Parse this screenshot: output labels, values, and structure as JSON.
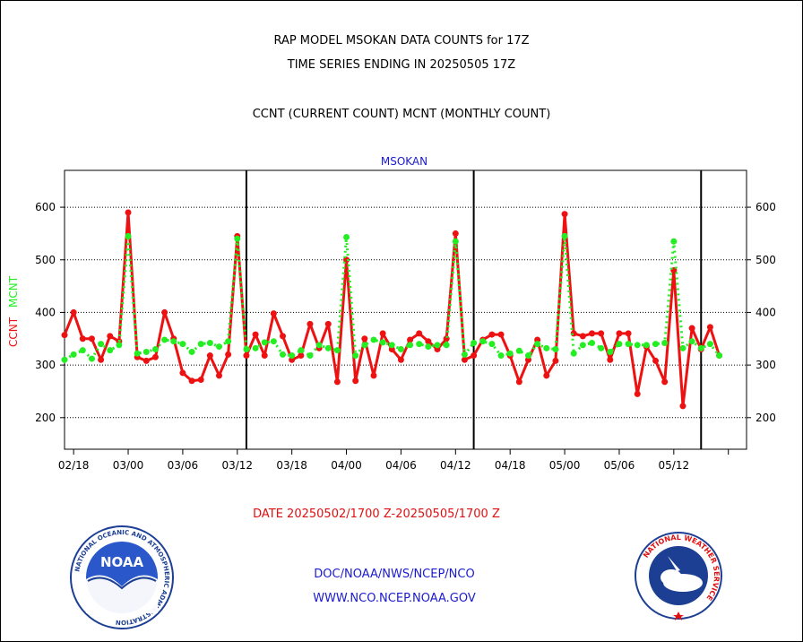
{
  "header": {
    "title_line1": "RAP MODEL MSOKAN DATA COUNTS for 17Z",
    "title_line2": "TIME SERIES ENDING IN 20250505 17Z",
    "title_line3": "CCNT (CURRENT COUNT) MCNT (MONTHLY COUNT)"
  },
  "footer": {
    "date_range": "DATE 20250502/1700 Z-20250505/1700 Z",
    "org_line": "DOC/NOAA/NWS/NCEP/NCO",
    "url_line": "WWW.NCO.NCEP.NOAA.GOV"
  },
  "logos": {
    "noaa_text": "NOAA",
    "noaa_ring_text": "NATIONAL OCEANIC AND ATMOSPHERIC ADMINISTRATION",
    "noaa_ring_text_bottom": "U.S. DEPARTMENT OF COMMERCE",
    "nws_ring_text": "NATIONAL WEATHER SERVICE"
  },
  "colors": {
    "ccnt": "#ee1111",
    "mcnt": "#22ee22",
    "station": "#1a1ad0"
  },
  "chart_data": {
    "type": "line",
    "title": "MSOKAN",
    "ylabel_series_1": "CCNT",
    "ylabel_series_2": "MCNT",
    "ylim": [
      140,
      670
    ],
    "yticks": [
      200,
      300,
      400,
      500,
      600
    ],
    "x_range": [
      0,
      75
    ],
    "x_tick_positions": [
      1,
      7,
      13,
      19,
      25,
      31,
      37,
      43,
      49,
      55,
      61,
      67,
      73
    ],
    "x_tick_labels": [
      "02/18",
      "03/00",
      "03/06",
      "03/12",
      "03/18",
      "04/00",
      "04/06",
      "04/12",
      "04/18",
      "05/00",
      "05/06",
      "05/12",
      ""
    ],
    "major_vlines": [
      20,
      45,
      70
    ],
    "grid": "horizontal dotted",
    "series": [
      {
        "name": "CCNT",
        "values": [
          357,
          400,
          350,
          350,
          310,
          355,
          345,
          590,
          315,
          308,
          315,
          400,
          350,
          285,
          270,
          272,
          318,
          280,
          320,
          545,
          318,
          358,
          318,
          398,
          355,
          310,
          318,
          378,
          332,
          378,
          268,
          500,
          270,
          350,
          280,
          360,
          330,
          310,
          348,
          360,
          345,
          330,
          350,
          550,
          310,
          318,
          348,
          358,
          358,
          318,
          268,
          310,
          348,
          280,
          308,
          587,
          360,
          355,
          360,
          360,
          310,
          360,
          360,
          245,
          335,
          308,
          268,
          480,
          222,
          370,
          330,
          372,
          318
        ]
      },
      {
        "name": "MCNT",
        "values": [
          310,
          320,
          328,
          312,
          340,
          328,
          338,
          545,
          322,
          325,
          330,
          348,
          345,
          340,
          325,
          340,
          342,
          335,
          345,
          540,
          330,
          332,
          343,
          345,
          320,
          318,
          328,
          318,
          338,
          332,
          328,
          543,
          318,
          338,
          348,
          343,
          338,
          330,
          338,
          340,
          335,
          338,
          338,
          535,
          320,
          342,
          345,
          340,
          318,
          322,
          327,
          318,
          340,
          332,
          330,
          545,
          322,
          338,
          342,
          332,
          325,
          340,
          340,
          338,
          338,
          340,
          342,
          535,
          332,
          345,
          332,
          340,
          318
        ]
      }
    ]
  }
}
